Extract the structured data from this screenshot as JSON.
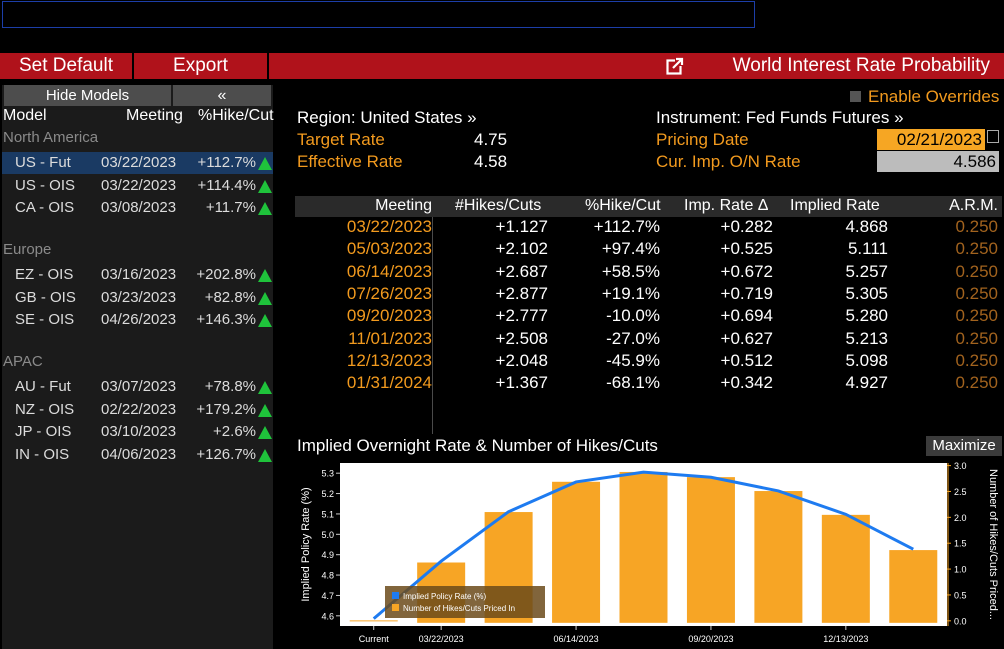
{
  "toolbar": {
    "set_default": "Set Default",
    "export": "Export",
    "window_title": "World Interest Rate Probability"
  },
  "left_panel": {
    "hide_models": "Hide Models",
    "collapse": "«",
    "headers": {
      "model": "Model",
      "meeting": "Meeting",
      "pct": "%Hike/Cut"
    },
    "groups": [
      {
        "name": "North America",
        "rows": [
          {
            "model": "US - Fut",
            "meeting": "03/22/2023",
            "pct": "+112.7%",
            "selected": true
          },
          {
            "model": "US - OIS",
            "meeting": "03/22/2023",
            "pct": "+114.4%"
          },
          {
            "model": "CA - OIS",
            "meeting": "03/08/2023",
            "pct": "+11.7%"
          }
        ]
      },
      {
        "name": "Europe",
        "rows": [
          {
            "model": "EZ - OIS",
            "meeting": "03/16/2023",
            "pct": "+202.8%"
          },
          {
            "model": "GB - OIS",
            "meeting": "03/23/2023",
            "pct": "+82.8%"
          },
          {
            "model": "SE - OIS",
            "meeting": "04/26/2023",
            "pct": "+146.3%"
          }
        ]
      },
      {
        "name": "APAC",
        "rows": [
          {
            "model": "AU - Fut",
            "meeting": "03/07/2023",
            "pct": "+78.8%"
          },
          {
            "model": "NZ - OIS",
            "meeting": "02/22/2023",
            "pct": "+179.2%"
          },
          {
            "model": "JP - OIS",
            "meeting": "03/10/2023",
            "pct": "+2.6%"
          },
          {
            "model": "IN - OIS",
            "meeting": "04/06/2023",
            "pct": "+126.7%"
          }
        ]
      }
    ]
  },
  "info": {
    "region": "Region: United States »",
    "target_rate_label": "Target Rate",
    "target_rate": "4.75",
    "effective_rate_label": "Effective Rate",
    "effective_rate": "4.58",
    "instrument": "Instrument: Fed Funds Futures »",
    "pricing_date_label": "Pricing Date",
    "pricing_date": "02/21/2023",
    "cur_imp_label": "Cur. Imp. O/N Rate",
    "cur_imp": "4.586",
    "enable_overrides": "Enable Overrides"
  },
  "table": {
    "headers": [
      "Meeting",
      "#Hikes/Cuts",
      "%Hike/Cut",
      "Imp. Rate Δ",
      "Implied Rate",
      "A.R.M."
    ],
    "rows": [
      [
        "03/22/2023",
        "+1.127",
        "+112.7%",
        "+0.282",
        "4.868",
        "0.250"
      ],
      [
        "05/03/2023",
        "+2.102",
        "+97.4%",
        "+0.525",
        "5.111",
        "0.250"
      ],
      [
        "06/14/2023",
        "+2.687",
        "+58.5%",
        "+0.672",
        "5.257",
        "0.250"
      ],
      [
        "07/26/2023",
        "+2.877",
        "+19.1%",
        "+0.719",
        "5.305",
        "0.250"
      ],
      [
        "09/20/2023",
        "+2.777",
        "-10.0%",
        "+0.694",
        "5.280",
        "0.250"
      ],
      [
        "11/01/2023",
        "+2.508",
        "-27.0%",
        "+0.627",
        "5.213",
        "0.250"
      ],
      [
        "12/13/2023",
        "+2.048",
        "-45.9%",
        "+0.512",
        "5.098",
        "0.250"
      ],
      [
        "01/31/2024",
        "+1.367",
        "-68.1%",
        "+0.342",
        "4.927",
        "0.250"
      ]
    ]
  },
  "chart_header": {
    "title": "Implied Overnight Rate & Number of Hikes/Cuts",
    "maximize": "Maximize"
  },
  "chart_data": {
    "type": "bar",
    "categories": [
      "Current",
      "03/22/2023",
      "05/03/2023",
      "06/14/2023",
      "07/26/2023",
      "09/20/2023",
      "11/01/2023",
      "12/13/2023",
      "01/31/2024"
    ],
    "x_tick_labels": [
      "Current",
      "03/22/2023",
      "06/14/2023",
      "09/20/2023",
      "12/13/2023"
    ],
    "series": [
      {
        "name": "Implied Policy Rate (%)",
        "type": "line",
        "axis": "left",
        "color": "#1e7bf0",
        "values": [
          4.586,
          4.868,
          5.111,
          5.257,
          5.305,
          5.28,
          5.213,
          5.098,
          4.927
        ]
      },
      {
        "name": "Number of Hikes/Cuts Priced In",
        "type": "bar",
        "axis": "right",
        "color": "#f7a525",
        "values": [
          0,
          1.127,
          2.102,
          2.687,
          2.877,
          2.777,
          2.508,
          2.048,
          1.367
        ]
      }
    ],
    "ylabel_left": "Implied Policy Rate (%)",
    "ylabel_right": "Number of Hikes/Cuts Priced...",
    "ylim_left": [
      4.55,
      5.35
    ],
    "ylim_right": [
      -0.1,
      3.05
    ],
    "yticks_left": [
      "4.6",
      "4.7",
      "4.8",
      "4.9",
      "5.0",
      "5.1",
      "5.2",
      "5.3"
    ],
    "yticks_right": [
      "0.0",
      "0.5",
      "1.0",
      "1.5",
      "2.0",
      "2.5",
      "3.0"
    ],
    "legend_position": "bottom-left"
  }
}
